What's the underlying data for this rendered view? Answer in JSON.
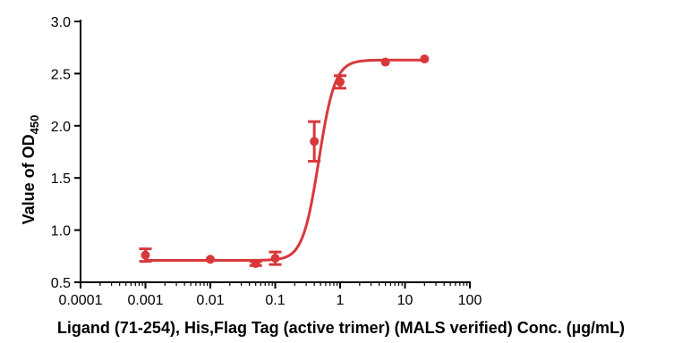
{
  "chart_data": {
    "type": "line",
    "title": "",
    "xlabel": "Ligand (71-254), His,Flag Tag (active trimer) (MALS verified) Conc. (µg/mL)",
    "ylabel_main": "Value of OD",
    "ylabel_sub": "450",
    "x_scale": "log",
    "xlim": [
      0.0001,
      100
    ],
    "ylim": [
      0.5,
      3.0
    ],
    "x_ticks": [
      "0.0001",
      "0.001",
      "0.01",
      "0.1",
      "1",
      "10",
      "100"
    ],
    "y_ticks": [
      "0.5",
      "1.0",
      "1.5",
      "2.0",
      "2.5",
      "3.0"
    ],
    "grid": false,
    "legend": "none",
    "color": "#d9383a",
    "series": [
      {
        "x": [
          0.001,
          0.01,
          0.05,
          0.1,
          0.4,
          1,
          5,
          20
        ],
        "y": [
          0.76,
          0.72,
          0.68,
          0.73,
          1.85,
          2.42,
          2.61,
          2.64
        ],
        "err": [
          0.06,
          0.0,
          0.02,
          0.06,
          0.19,
          0.06,
          0.0,
          0.0
        ]
      }
    ],
    "fit": {
      "model": "4PL",
      "bottom": 0.71,
      "top": 2.63,
      "ec50": 0.47,
      "hill": 3.5
    }
  }
}
